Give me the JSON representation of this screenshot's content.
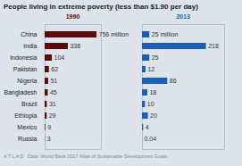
{
  "chart_data": [
    {
      "type": "bar",
      "orientation": "horizontal",
      "title": "People living in extreme poverty (less than $1.90 per day)",
      "subtitle": "1990",
      "categories": [
        "China",
        "India",
        "Indonesia",
        "Pakistan",
        "Nigeria",
        "Bangladesh",
        "Brazil",
        "Ethiopia",
        "Mexico",
        "Russia"
      ],
      "values": [
        756,
        338,
        104,
        62,
        51,
        45,
        31,
        29,
        9,
        3
      ],
      "value_labels": [
        "756 million",
        "338",
        "104",
        "62",
        "51",
        "45",
        "31",
        "29",
        "9",
        "3"
      ],
      "data_labels": true,
      "color": "#5c0a0a",
      "xlim": [
        0,
        820
      ],
      "tick_labels": "y"
    },
    {
      "type": "bar",
      "orientation": "horizontal",
      "subtitle": "2013",
      "categories": [
        "China",
        "India",
        "Indonesia",
        "Pakistan",
        "Nigeria",
        "Bangladesh",
        "Brazil",
        "Ethiopia",
        "Mexico",
        "Russia"
      ],
      "values": [
        25,
        218,
        25,
        12,
        86,
        18,
        10,
        20,
        4,
        0.04
      ],
      "value_labels": [
        "25 million",
        "218",
        "25",
        "12",
        "86",
        "18",
        "10",
        "20",
        "4",
        "0.04"
      ],
      "data_labels": true,
      "color": "#1a5eb8",
      "xlim": [
        0,
        280
      ],
      "tick_labels": false,
      "annotations": [
        "A T L A S   Data: World Bank 2017 Atlas of Sustainable Development Goals"
      ]
    }
  ]
}
